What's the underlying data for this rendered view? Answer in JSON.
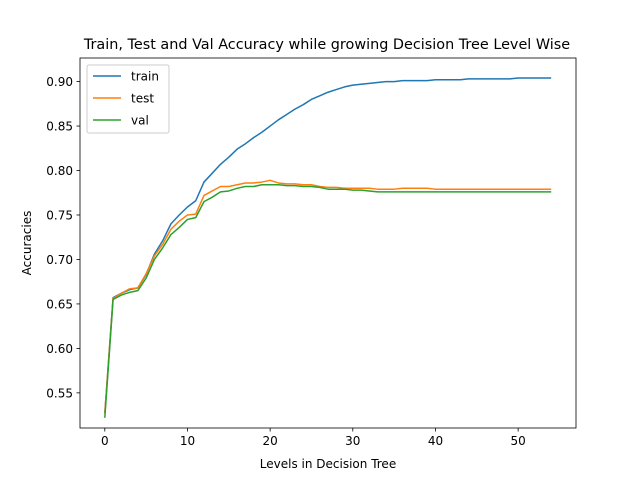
{
  "chart_data": {
    "type": "line",
    "title": "Train, Test and Val Accuracy while growing Decision Tree Level Wise",
    "xlabel": "Levels in Decision Tree",
    "ylabel": "Accuracies",
    "xlim": [
      -3.0,
      57.0
    ],
    "ylim": [
      0.5105,
      0.9265
    ],
    "xticks": [
      0,
      10,
      20,
      30,
      40,
      50
    ],
    "xtick_labels": [
      "0",
      "10",
      "20",
      "30",
      "40",
      "50"
    ],
    "yticks": [
      0.55,
      0.6,
      0.65,
      0.7,
      0.75,
      0.8,
      0.85,
      0.9
    ],
    "ytick_labels": [
      "0.55",
      "0.60",
      "0.65",
      "0.70",
      "0.75",
      "0.80",
      "0.85",
      "0.90"
    ],
    "grid": false,
    "legend_position": "top-left",
    "x": [
      0,
      1,
      2,
      3,
      4,
      5,
      6,
      7,
      8,
      9,
      10,
      11,
      12,
      13,
      14,
      15,
      16,
      17,
      18,
      19,
      20,
      21,
      22,
      23,
      24,
      25,
      26,
      27,
      28,
      29,
      30,
      31,
      32,
      33,
      34,
      35,
      36,
      37,
      38,
      39,
      40,
      41,
      42,
      43,
      44,
      45,
      46,
      47,
      48,
      49,
      50,
      51,
      52,
      53,
      54
    ],
    "series": [
      {
        "name": "train",
        "color": "#1f77b4",
        "values": [
          0.527,
          0.657,
          0.662,
          0.666,
          0.668,
          0.683,
          0.706,
          0.721,
          0.74,
          0.75,
          0.759,
          0.766,
          0.787,
          0.797,
          0.807,
          0.815,
          0.824,
          0.83,
          0.837,
          0.843,
          0.85,
          0.857,
          0.863,
          0.869,
          0.874,
          0.88,
          0.884,
          0.888,
          0.891,
          0.894,
          0.896,
          0.897,
          0.898,
          0.899,
          0.9,
          0.9,
          0.901,
          0.901,
          0.901,
          0.901,
          0.902,
          0.902,
          0.902,
          0.902,
          0.903,
          0.903,
          0.903,
          0.903,
          0.903,
          0.903,
          0.904,
          0.904,
          0.904,
          0.904,
          0.904
        ]
      },
      {
        "name": "test",
        "color": "#ff7f0e",
        "values": [
          0.527,
          0.656,
          0.662,
          0.667,
          0.668,
          0.684,
          0.704,
          0.717,
          0.734,
          0.743,
          0.75,
          0.751,
          0.772,
          0.777,
          0.782,
          0.782,
          0.784,
          0.786,
          0.786,
          0.787,
          0.789,
          0.786,
          0.785,
          0.785,
          0.784,
          0.784,
          0.782,
          0.781,
          0.781,
          0.78,
          0.78,
          0.78,
          0.78,
          0.779,
          0.779,
          0.779,
          0.78,
          0.78,
          0.78,
          0.78,
          0.779,
          0.779,
          0.779,
          0.779,
          0.779,
          0.779,
          0.779,
          0.779,
          0.779,
          0.779,
          0.779,
          0.779,
          0.779,
          0.779,
          0.779
        ]
      },
      {
        "name": "val",
        "color": "#2ca02c",
        "values": [
          0.522,
          0.655,
          0.66,
          0.663,
          0.665,
          0.679,
          0.7,
          0.713,
          0.728,
          0.736,
          0.745,
          0.747,
          0.765,
          0.77,
          0.776,
          0.777,
          0.78,
          0.782,
          0.782,
          0.784,
          0.784,
          0.784,
          0.783,
          0.783,
          0.782,
          0.782,
          0.781,
          0.779,
          0.779,
          0.779,
          0.778,
          0.778,
          0.777,
          0.776,
          0.776,
          0.776,
          0.776,
          0.776,
          0.776,
          0.776,
          0.776,
          0.776,
          0.776,
          0.776,
          0.776,
          0.776,
          0.776,
          0.776,
          0.776,
          0.776,
          0.776,
          0.776,
          0.776,
          0.776,
          0.776
        ]
      }
    ]
  }
}
